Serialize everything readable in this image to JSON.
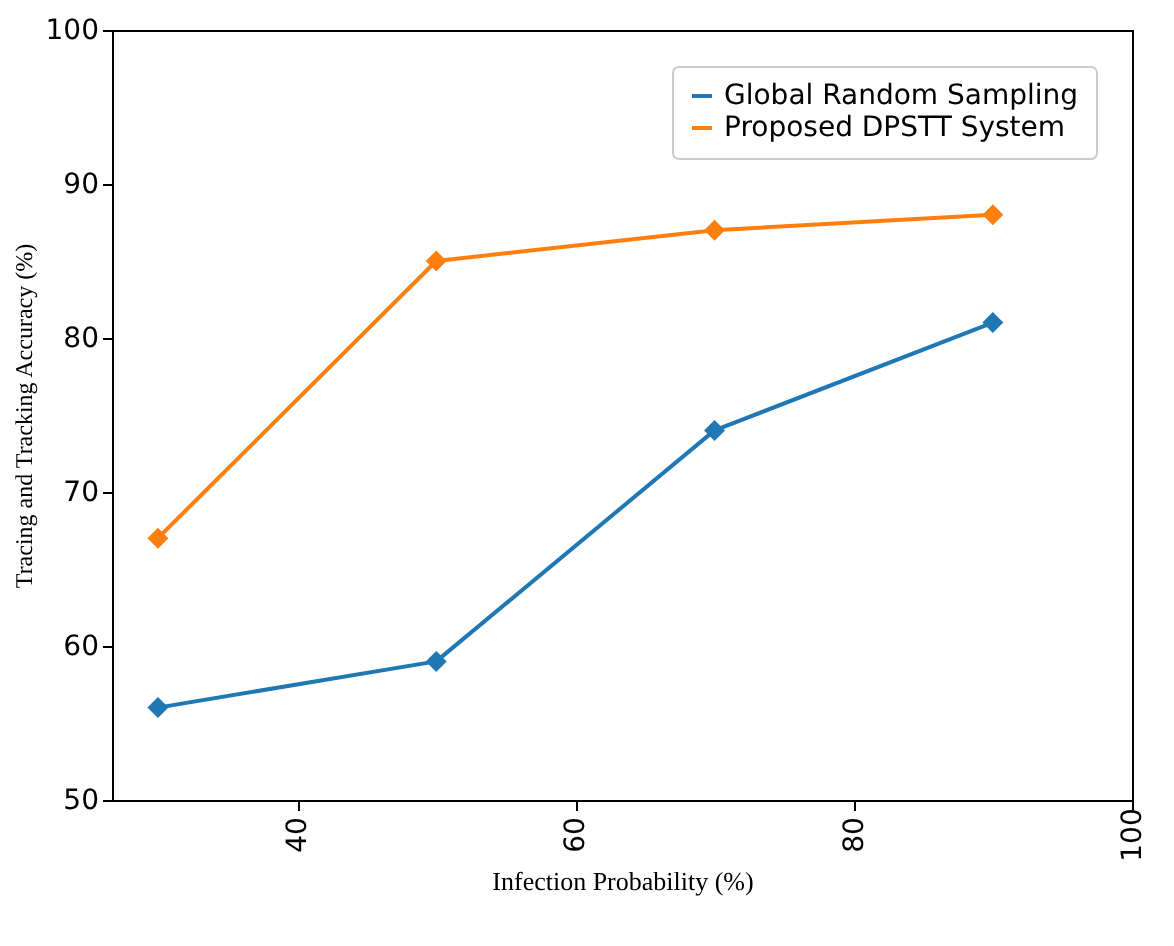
{
  "chart_data": {
    "type": "line",
    "xlabel": "Infection Probability (%)",
    "ylabel": "Tracing and Tracking Accuracy (%)",
    "x": [
      30,
      50,
      70,
      90
    ],
    "series": [
      {
        "name": "Global Random Sampling",
        "color": "#1f77b4",
        "values": [
          56,
          59,
          74,
          81
        ]
      },
      {
        "name": "Proposed DPSTT System",
        "color": "#ff7f0e",
        "values": [
          67,
          85,
          87,
          88
        ]
      }
    ],
    "xlim": [
      26.7,
      100
    ],
    "xticks": [
      40,
      60,
      80,
      100
    ],
    "ylim": [
      50,
      100
    ],
    "yticks": [
      50,
      60,
      70,
      80,
      90,
      100
    ],
    "marker": "diamond",
    "line_style": "solid",
    "legend": "top right",
    "grid": false
  }
}
